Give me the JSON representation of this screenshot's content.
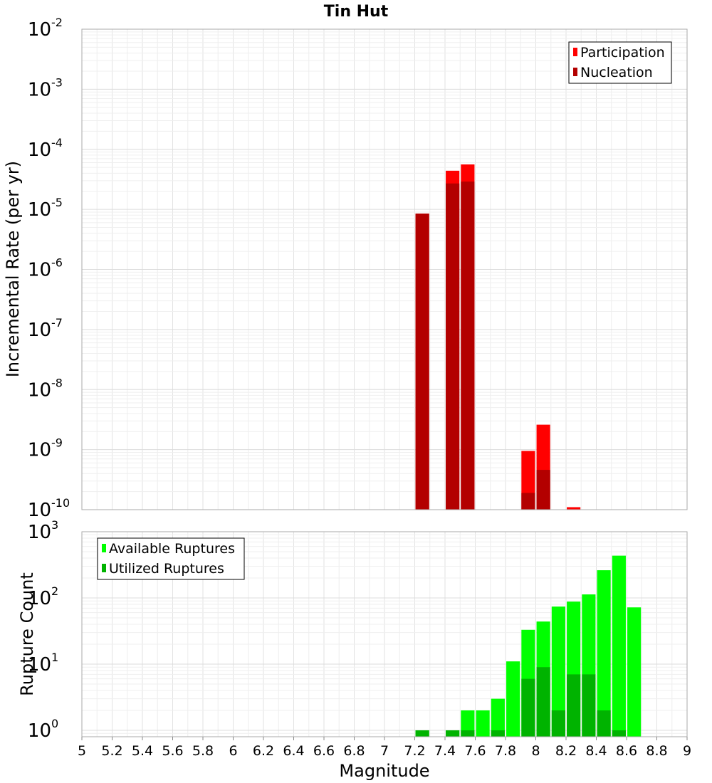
{
  "chart_data": [
    {
      "type": "bar",
      "panel": "top",
      "title": "Tin Hut",
      "xlabel": "",
      "ylabel": "Incremental Rate (per yr)",
      "yscale": "log",
      "ylim": [
        1e-10,
        0.01
      ],
      "y_ticks": [
        {
          "base": "10",
          "exp": "-2"
        },
        {
          "base": "10",
          "exp": "-3"
        },
        {
          "base": "10",
          "exp": "-4"
        },
        {
          "base": "10",
          "exp": "-5"
        },
        {
          "base": "10",
          "exp": "-6"
        },
        {
          "base": "10",
          "exp": "-7"
        },
        {
          "base": "10",
          "exp": "-8"
        },
        {
          "base": "10",
          "exp": "-9"
        },
        {
          "base": "10",
          "exp": "-10"
        }
      ],
      "legend_position": "top-right",
      "grid": true,
      "series": [
        {
          "name": "Participation",
          "color": "#ff0000",
          "points": [
            {
              "x": 7.25,
              "y": 8.5e-06
            },
            {
              "x": 7.45,
              "y": 4.4e-05
            },
            {
              "x": 7.55,
              "y": 5.6e-05
            },
            {
              "x": 7.95,
              "y": 9.5e-10
            },
            {
              "x": 8.05,
              "y": 2.6e-09
            },
            {
              "x": 8.25,
              "y": 1.1e-10
            }
          ]
        },
        {
          "name": "Nucleation",
          "color": "#b30000",
          "points": [
            {
              "x": 7.25,
              "y": 8.5e-06
            },
            {
              "x": 7.45,
              "y": 2.7e-05
            },
            {
              "x": 7.55,
              "y": 2.9e-05
            },
            {
              "x": 7.95,
              "y": 1.9e-10
            },
            {
              "x": 8.05,
              "y": 4.6e-10
            }
          ]
        }
      ]
    },
    {
      "type": "bar",
      "panel": "bottom",
      "xlabel": "Magnitude",
      "ylabel": "Rupture Count",
      "yscale": "log",
      "ylim": [
        0.8,
        1000
      ],
      "xlim": [
        5,
        9
      ],
      "x_ticks": [
        "5",
        "5.2",
        "5.4",
        "5.6",
        "5.8",
        "6",
        "6.2",
        "6.4",
        "6.6",
        "6.8",
        "7",
        "7.2",
        "7.4",
        "7.6",
        "7.8",
        "8",
        "8.2",
        "8.4",
        "8.6",
        "8.8",
        "9"
      ],
      "y_ticks": [
        {
          "base": "10",
          "exp": "3"
        },
        {
          "base": "10",
          "exp": "2"
        },
        {
          "base": "10",
          "exp": "1"
        },
        {
          "base": "10",
          "exp": "0"
        }
      ],
      "legend_position": "top-left",
      "grid": true,
      "series": [
        {
          "name": "Available Ruptures",
          "color": "#00ff00",
          "points": [
            {
              "x": 7.25,
              "y": 1
            },
            {
              "x": 7.45,
              "y": 1
            },
            {
              "x": 7.55,
              "y": 2
            },
            {
              "x": 7.65,
              "y": 2
            },
            {
              "x": 7.75,
              "y": 3
            },
            {
              "x": 7.85,
              "y": 11
            },
            {
              "x": 7.95,
              "y": 33
            },
            {
              "x": 8.05,
              "y": 44
            },
            {
              "x": 8.15,
              "y": 74
            },
            {
              "x": 8.25,
              "y": 88
            },
            {
              "x": 8.35,
              "y": 113
            },
            {
              "x": 8.45,
              "y": 262
            },
            {
              "x": 8.55,
              "y": 435
            },
            {
              "x": 8.65,
              "y": 72
            }
          ]
        },
        {
          "name": "Utilized Ruptures",
          "color": "#00b300",
          "points": [
            {
              "x": 7.25,
              "y": 1
            },
            {
              "x": 7.45,
              "y": 1
            },
            {
              "x": 7.55,
              "y": 1
            },
            {
              "x": 7.75,
              "y": 1
            },
            {
              "x": 7.95,
              "y": 6
            },
            {
              "x": 8.05,
              "y": 9
            },
            {
              "x": 8.15,
              "y": 2
            },
            {
              "x": 8.25,
              "y": 7
            },
            {
              "x": 8.35,
              "y": 7
            },
            {
              "x": 8.45,
              "y": 2
            },
            {
              "x": 8.55,
              "y": 1
            }
          ]
        }
      ]
    }
  ]
}
